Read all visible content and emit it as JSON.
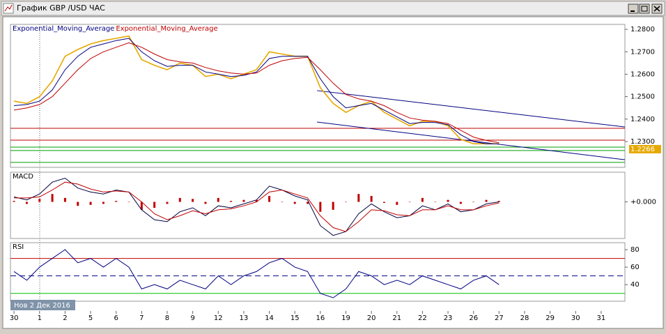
{
  "window": {
    "title": "График GBP /USD ЧАС",
    "cursor_label": "Нов 2 Дек 2016"
  },
  "chart_data": [
    {
      "type": "line",
      "x": [
        0,
        0.5,
        1,
        1.5,
        2,
        2.5,
        3,
        3.5,
        4,
        4.5,
        5,
        5.5,
        6,
        6.5,
        7,
        7.5,
        8,
        8.5,
        9,
        9.5,
        10,
        10.5,
        11,
        11.5,
        12,
        12.5,
        13,
        13.5,
        14,
        14.5,
        15,
        15.5,
        16,
        16.5,
        17,
        17.5,
        18,
        18.5,
        19
      ],
      "xlim": [
        -0.14,
        23.93
      ],
      "ylim": [
        1.2185,
        1.2822
      ],
      "yticks": [
        {
          "value": 1.28,
          "label": "1.2800"
        },
        {
          "value": 1.27,
          "label": "1.2700"
        },
        {
          "value": 1.26,
          "label": "1.2600"
        },
        {
          "value": 1.25,
          "label": "1.2500"
        },
        {
          "value": 1.24,
          "label": "1.2400"
        },
        {
          "value": 1.23,
          "label": "1.2300"
        }
      ],
      "price": {
        "color": "#e6a800",
        "values": [
          1.248,
          1.247,
          1.25,
          1.257,
          1.268,
          1.271,
          1.2735,
          1.275,
          1.276,
          1.277,
          1.2665,
          1.264,
          1.262,
          1.265,
          1.264,
          1.259,
          1.26,
          1.258,
          1.26,
          1.262,
          1.27,
          1.269,
          1.268,
          1.268,
          1.254,
          1.247,
          1.243,
          1.246,
          1.248,
          1.243,
          1.24,
          1.237,
          1.239,
          1.239,
          1.237,
          1.231,
          1.229,
          1.229,
          1.229
        ]
      },
      "series": [
        {
          "name": "Exponential_Moving_Average",
          "color": "#000080",
          "values": [
            1.246,
            1.2465,
            1.248,
            1.253,
            1.262,
            1.268,
            1.272,
            1.2735,
            1.275,
            1.276,
            1.27,
            1.266,
            1.2635,
            1.264,
            1.264,
            1.261,
            1.26,
            1.259,
            1.2595,
            1.261,
            1.267,
            1.268,
            1.268,
            1.268,
            1.258,
            1.25,
            1.245,
            1.246,
            1.247,
            1.244,
            1.241,
            1.238,
            1.2385,
            1.2385,
            1.2375,
            1.233,
            1.23,
            1.229,
            1.229
          ]
        },
        {
          "name": "Exponential_Moving_Average",
          "color": "#c00000",
          "values": [
            1.244,
            1.245,
            1.2465,
            1.25,
            1.256,
            1.262,
            1.267,
            1.27,
            1.272,
            1.274,
            1.272,
            1.269,
            1.2665,
            1.2655,
            1.265,
            1.263,
            1.2615,
            1.2605,
            1.26,
            1.2605,
            1.264,
            1.266,
            1.267,
            1.2675,
            1.262,
            1.256,
            1.251,
            1.249,
            1.248,
            1.246,
            1.243,
            1.2405,
            1.2395,
            1.239,
            1.238,
            1.235,
            1.232,
            1.2305,
            1.2295
          ]
        }
      ],
      "levels": [
        {
          "value": 1.2359,
          "color": "#c00000"
        },
        {
          "value": 1.2306,
          "color": "#c00000"
        },
        {
          "value": 1.2275,
          "color": "#00a000"
        },
        {
          "value": 1.226,
          "color": "#00a000"
        },
        {
          "value": 1.2207,
          "color": "#00a000"
        }
      ],
      "trend_lines": [
        {
          "x": [
            11.87,
            23.93
          ],
          "y": [
            1.2527,
            1.2365
          ],
          "color": "#000080"
        },
        {
          "x": [
            11.87,
            23.93
          ],
          "y": [
            1.2387,
            1.2219
          ],
          "color": "#000080"
        }
      ],
      "last_price": 1.2266,
      "last_price_color": "#e6a800"
    },
    {
      "type": "line",
      "title": "MACD",
      "x": [
        0,
        0.5,
        1,
        1.5,
        2,
        2.5,
        3,
        3.5,
        4,
        4.5,
        5,
        5.5,
        6,
        6.5,
        7,
        7.5,
        8,
        8.5,
        9,
        9.5,
        10,
        10.5,
        11,
        11.5,
        12,
        12.5,
        13,
        13.5,
        14,
        14.5,
        15,
        15.5,
        16,
        16.5,
        17,
        17.5,
        18,
        18.5,
        19
      ],
      "xlim": [
        -0.14,
        23.93
      ],
      "ylim": [
        -0.0037,
        0.003
      ],
      "yticks": [
        {
          "value": 0,
          "label": "+0.000"
        }
      ],
      "histogram": {
        "color": "#c00000",
        "values": [
          0.0001,
          -0.0002,
          0.0003,
          0.0008,
          0.0004,
          -0.0004,
          -0.0003,
          -0.0002,
          0.0001,
          0,
          -0.0008,
          -0.0006,
          -0.0002,
          0.0004,
          0.0003,
          -0.0002,
          0.0004,
          0.0001,
          0.0002,
          0.0002,
          0.0006,
          0,
          -0.0002,
          -0.0002,
          -0.001,
          -0.0008,
          0,
          0.0008,
          0.0006,
          -0.0001,
          -0.0003,
          0,
          0.0004,
          0,
          0.0002,
          -0.0002,
          0,
          0.0002,
          0.0001
        ]
      },
      "series": [
        {
          "color": "#000040",
          "values": [
            0.0005,
            0.0002,
            0.0008,
            0.002,
            0.0024,
            0.0014,
            0.001,
            0.0008,
            0.0012,
            0.001,
            -0.0008,
            -0.0018,
            -0.002,
            -0.001,
            -0.0006,
            -0.0014,
            -0.0004,
            -0.0006,
            -0.0002,
            0.0002,
            0.0016,
            0.0012,
            0.0006,
            0.0002,
            -0.0024,
            -0.0034,
            -0.003,
            -0.0012,
            -0.0002,
            -0.001,
            -0.0016,
            -0.0014,
            -0.0004,
            -0.0008,
            -0.0002,
            -0.001,
            -0.0008,
            -0.0002,
            0
          ]
        },
        {
          "color": "#c00000",
          "values": [
            0.0004,
            0.0004,
            0.0005,
            0.0012,
            0.002,
            0.0018,
            0.0013,
            0.001,
            0.0011,
            0.001,
            0,
            -0.0012,
            -0.0018,
            -0.0014,
            -0.0009,
            -0.0012,
            -0.0008,
            -0.0007,
            -0.0004,
            0,
            0.001,
            0.0012,
            0.0008,
            0.0004,
            -0.0014,
            -0.0026,
            -0.003,
            -0.002,
            -0.0008,
            -0.0009,
            -0.0013,
            -0.0014,
            -0.0008,
            -0.0008,
            -0.0004,
            -0.0008,
            -0.0008,
            -0.0004,
            -0.0001
          ]
        }
      ]
    },
    {
      "type": "line",
      "title": "RSI",
      "x": [
        0,
        0.5,
        1,
        1.5,
        2,
        2.5,
        3,
        3.5,
        4,
        4.5,
        5,
        5.5,
        6,
        6.5,
        7,
        7.5,
        8,
        8.5,
        9,
        9.5,
        10,
        10.5,
        11,
        11.5,
        12,
        12.5,
        13,
        13.5,
        14,
        14.5,
        15,
        15.5,
        16,
        16.5,
        17,
        17.5,
        18,
        18.5,
        19
      ],
      "xlim": [
        -0.14,
        23.93
      ],
      "ylim": [
        21,
        88
      ],
      "yticks": [
        80,
        60,
        40
      ],
      "levels": [
        {
          "value": 70,
          "color": "#c00000"
        },
        {
          "value": 50,
          "color": "#000080",
          "dashed": true
        },
        {
          "value": 30,
          "color": "#00c000"
        }
      ],
      "series": [
        {
          "color": "#000080",
          "values": [
            55,
            45,
            60,
            70,
            80,
            65,
            70,
            60,
            70,
            60,
            35,
            40,
            35,
            45,
            40,
            35,
            50,
            40,
            50,
            55,
            65,
            70,
            60,
            55,
            30,
            25,
            35,
            55,
            50,
            40,
            45,
            40,
            50,
            45,
            40,
            35,
            45,
            50,
            40
          ]
        }
      ],
      "xticks": [
        {
          "value": 0,
          "label": "30"
        },
        1,
        2,
        {
          "value": 3,
          "label": "5"
        },
        {
          "value": 4,
          "label": "6"
        },
        {
          "value": 5,
          "label": "7"
        },
        {
          "value": 6,
          "label": "8"
        },
        {
          "value": 7,
          "label": "9"
        },
        {
          "value": 8,
          "label": "12"
        },
        {
          "value": 9,
          "label": "13"
        },
        {
          "value": 10,
          "label": "14"
        },
        {
          "value": 11,
          "label": "15"
        },
        {
          "value": 12,
          "label": "16"
        },
        {
          "value": 13,
          "label": "19"
        },
        {
          "value": 14,
          "label": "20"
        },
        {
          "value": 15,
          "label": "21"
        },
        {
          "value": 16,
          "label": "22"
        },
        {
          "value": 17,
          "label": "23"
        },
        {
          "value": 18,
          "label": "26"
        },
        {
          "value": 19,
          "label": "27"
        },
        {
          "value": 20,
          "label": "28"
        },
        {
          "value": 21,
          "label": "29"
        },
        {
          "value": 22,
          "label": "30"
        },
        {
          "value": 23,
          "label": "31"
        }
      ]
    }
  ]
}
